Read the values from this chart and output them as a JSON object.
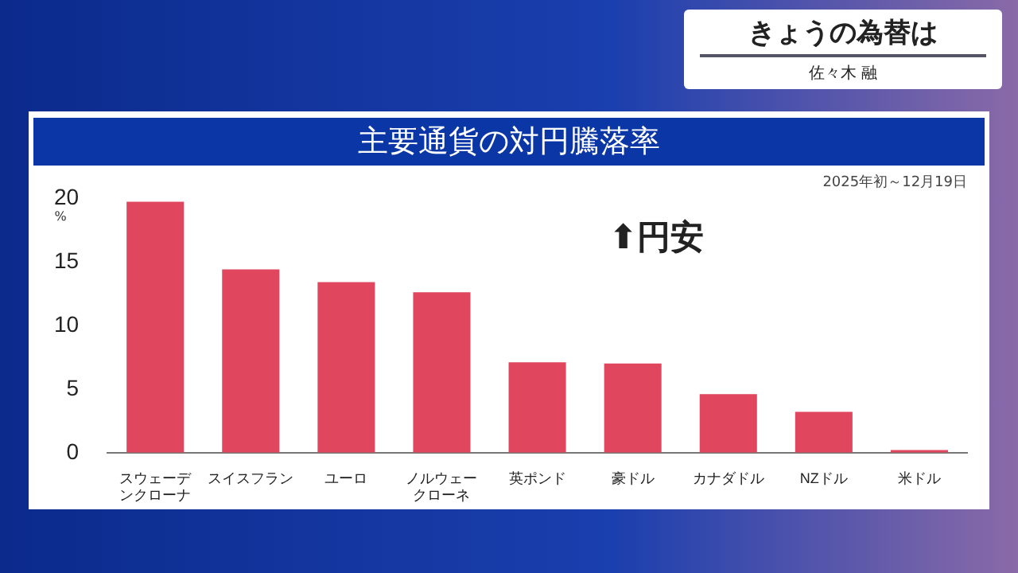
{
  "chart_data": {
    "type": "bar",
    "title": "主要通貨の対円騰落率",
    "subtitle": "2025年初～12月19日",
    "ylabel": "%",
    "categories": [
      "スウェーデンクローナ",
      "スイスフラン",
      "ユーロ",
      "ノルウェークローネ",
      "英ポンド",
      "豪ドル",
      "カナダドル",
      "NZドル",
      "米ドル"
    ],
    "values": [
      19.7,
      14.4,
      13.4,
      12.6,
      7.1,
      7.0,
      4.6,
      3.2,
      0.2
    ],
    "color": "#e0475f",
    "ylim": [
      0,
      20
    ],
    "yticks": [
      0,
      5,
      10,
      15,
      20
    ],
    "grid": false,
    "legend": false,
    "annotations": [
      "⬆円安",
      "きょうの為替は",
      "佐々木 融"
    ]
  }
}
